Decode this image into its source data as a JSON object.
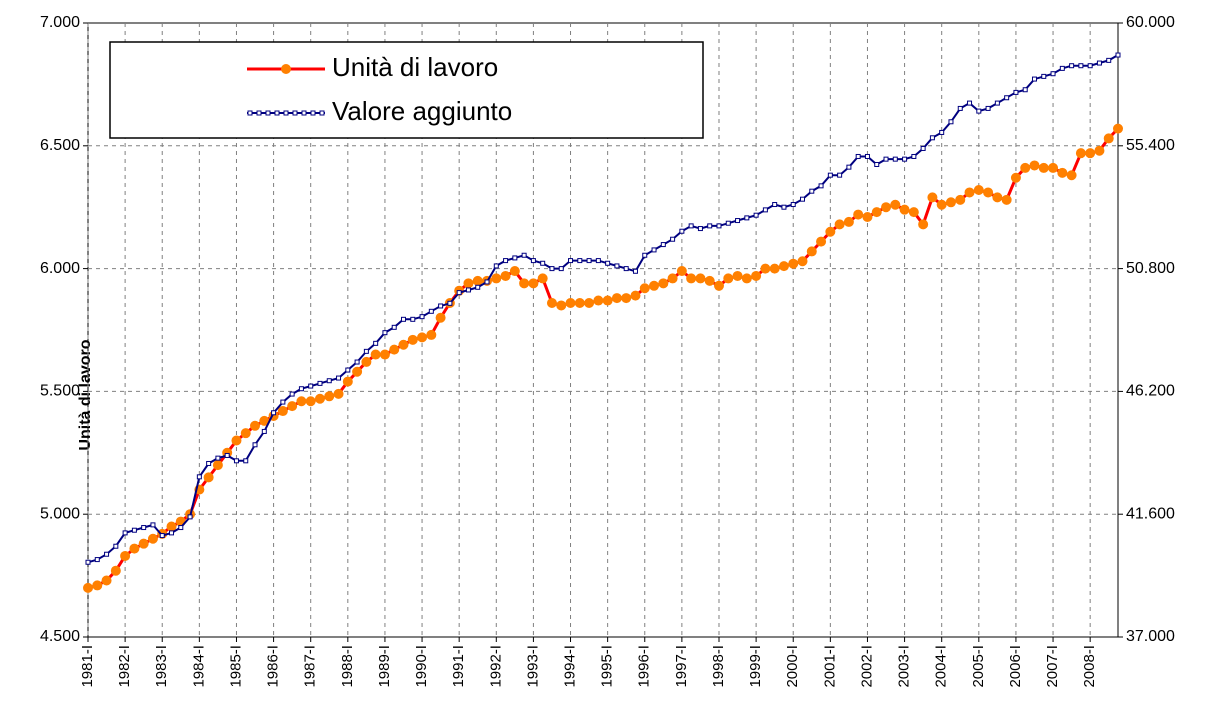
{
  "chart_data": {
    "type": "line",
    "y_label": "Unità di lavoro",
    "legend": "top-left",
    "grid": true,
    "categories": [
      "1981-I",
      null,
      null,
      null,
      "1982-I",
      null,
      null,
      null,
      "1983-I",
      null,
      null,
      null,
      "1984-I",
      null,
      null,
      null,
      "1985-I",
      null,
      null,
      null,
      "1986-I",
      null,
      null,
      null,
      "1987-I",
      null,
      null,
      null,
      "1988-I",
      null,
      null,
      null,
      "1989-I",
      null,
      null,
      null,
      "1990-I",
      null,
      null,
      null,
      "1991-I",
      null,
      null,
      null,
      "1992-I",
      null,
      null,
      null,
      "1993-I",
      null,
      null,
      null,
      "1994-I",
      null,
      null,
      null,
      "1995-I",
      null,
      null,
      null,
      "1996-I",
      null,
      null,
      null,
      "1997-I",
      null,
      null,
      null,
      "1998-I",
      null,
      null,
      null,
      "1999-I",
      null,
      null,
      null,
      "2000-I",
      null,
      null,
      null,
      "2001-I",
      null,
      null,
      null,
      "2002-I",
      null,
      null,
      null,
      "2003-I",
      null,
      null,
      null,
      "2004-I",
      null,
      null,
      null,
      "2005-I",
      null,
      null,
      null,
      "2006-I",
      null,
      null,
      null,
      "2007-I",
      null,
      null,
      null,
      "2008-I",
      null,
      null,
      null
    ],
    "ylim": [
      4500,
      7000
    ],
    "yticks": [
      {
        "value": 4500,
        "label": "4.500"
      },
      {
        "value": 5000,
        "label": "5.000"
      },
      {
        "value": 5500,
        "label": "5.500"
      },
      {
        "value": 6000,
        "label": "6.000"
      },
      {
        "value": 6500,
        "label": "6.500"
      },
      {
        "value": 7000,
        "label": "7.000"
      }
    ],
    "y2lim": [
      37000,
      60000
    ],
    "y2ticks": [
      {
        "value": 37000,
        "label": "37.000"
      },
      {
        "value": 41600,
        "label": "41.600"
      },
      {
        "value": 46200,
        "label": "46.200"
      },
      {
        "value": 50800,
        "label": "50.800"
      },
      {
        "value": 55400,
        "label": "55.400"
      },
      {
        "value": 60000,
        "label": "60.000"
      }
    ],
    "series": [
      {
        "name": "Unità di lavoro",
        "color": "#ff0000",
        "marker_color": "#ff8000",
        "axis": "y",
        "values": [
          4700,
          4710,
          4730,
          4770,
          4830,
          4860,
          4880,
          4900,
          4920,
          4950,
          4970,
          5000,
          5100,
          5150,
          5200,
          5250,
          5300,
          5330,
          5360,
          5380,
          5400,
          5420,
          5440,
          5460,
          5460,
          5470,
          5480,
          5490,
          5540,
          5580,
          5620,
          5650,
          5650,
          5670,
          5690,
          5710,
          5720,
          5730,
          5800,
          5860,
          5910,
          5940,
          5950,
          5950,
          5960,
          5970,
          5990,
          5940,
          5940,
          5960,
          5860,
          5850,
          5860,
          5860,
          5860,
          5870,
          5870,
          5880,
          5880,
          5890,
          5920,
          5930,
          5940,
          5960,
          5990,
          5960,
          5960,
          5950,
          5930,
          5960,
          5970,
          5960,
          5970,
          6000,
          6000,
          6010,
          6020,
          6030,
          6070,
          6110,
          6150,
          6180,
          6190,
          6220,
          6210,
          6230,
          6250,
          6260,
          6240,
          6230,
          6180,
          6290,
          6260,
          6270,
          6280,
          6310,
          6320,
          6310,
          6290,
          6280,
          6370,
          6410,
          6420,
          6410,
          6410,
          6390,
          6380,
          6470,
          6470,
          6480,
          6530,
          6570
        ]
      },
      {
        "name": "Valore aggiunto",
        "color": "#000080",
        "axis": "y2",
        "values": [
          39800,
          39900,
          40100,
          40400,
          40900,
          41000,
          41100,
          41200,
          40800,
          40900,
          41100,
          41500,
          43000,
          43500,
          43700,
          43800,
          43600,
          43600,
          44200,
          44700,
          45400,
          45800,
          46100,
          46300,
          46400,
          46500,
          46600,
          46700,
          47000,
          47300,
          47700,
          48000,
          48400,
          48600,
          48900,
          48900,
          49000,
          49200,
          49400,
          49500,
          49900,
          50000,
          50100,
          50300,
          50900,
          51100,
          51200,
          51300,
          51100,
          51000,
          50800,
          50800,
          51100,
          51100,
          51100,
          51100,
          51000,
          50900,
          50800,
          50700,
          51300,
          51500,
          51700,
          51900,
          52200,
          52400,
          52300,
          52400,
          52400,
          52500,
          52600,
          52700,
          52800,
          53000,
          53200,
          53100,
          53200,
          53400,
          53700,
          53900,
          54300,
          54300,
          54600,
          55000,
          55000,
          54700,
          54900,
          54900,
          54900,
          55000,
          55300,
          55700,
          55900,
          56300,
          56800,
          57000,
          56700,
          56800,
          57000,
          57200,
          57400,
          57500,
          57900,
          58000,
          58100,
          58300,
          58400,
          58400,
          58400,
          58500,
          58600,
          58800
        ]
      }
    ]
  }
}
